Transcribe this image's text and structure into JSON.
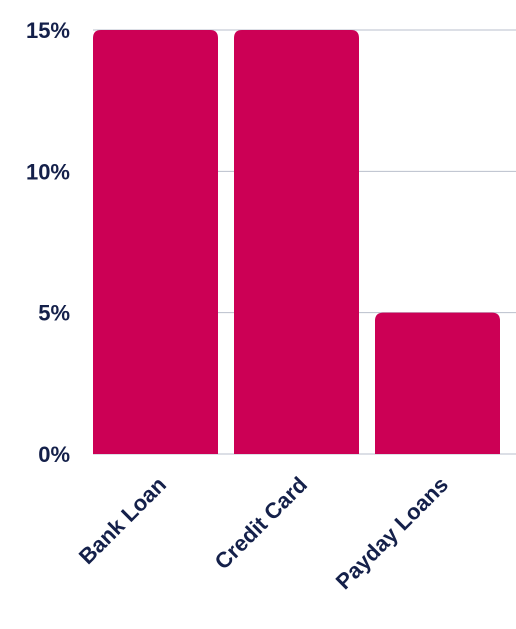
{
  "chart_data": {
    "type": "bar",
    "categories": [
      "Bank Loan",
      "Credit Card",
      "Payday Loans"
    ],
    "values": [
      15,
      15,
      5
    ],
    "ylim": [
      0,
      15
    ],
    "yticks": [
      0,
      5,
      10,
      15
    ],
    "ytick_labels": [
      "0%",
      "5%",
      "10%",
      "15%"
    ],
    "grid": true,
    "bar_color": "#cc0055",
    "text_color": "#14204a",
    "grid_color": "#b9bfcc"
  }
}
